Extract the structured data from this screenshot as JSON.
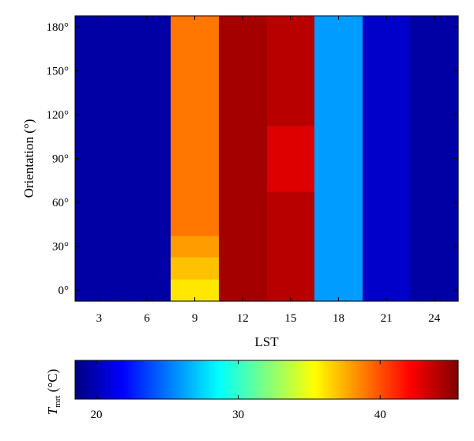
{
  "chart_data": [
    {
      "type": "heatmap",
      "title": "",
      "xlabel": "LST",
      "ylabel": "Orientation (°)",
      "xticks": [
        3,
        6,
        9,
        12,
        15,
        18,
        21,
        24
      ],
      "xtick_labels": [
        "3",
        "6",
        "9",
        "12",
        "15",
        "18",
        "21",
        "24"
      ],
      "xlim": [
        1.5,
        25.5
      ],
      "yticks": [
        0,
        30,
        60,
        90,
        120,
        150,
        180
      ],
      "ytick_labels": [
        "0°",
        "30°",
        "60°",
        "90°",
        "120°",
        "150°",
        "180°"
      ],
      "ylim": [
        -7.5,
        187.5
      ],
      "x_bin_width": 3,
      "y_bin_width": 15,
      "columns": [
        {
          "lst": 3,
          "tmrt": [
            [
              -7.5,
              187.5,
              19.5
            ]
          ]
        },
        {
          "lst": 6,
          "tmrt": [
            [
              -7.5,
              187.5,
              19.5
            ]
          ]
        },
        {
          "lst": 9,
          "tmrt": [
            [
              -7.5,
              7.5,
              36.0
            ],
            [
              7.5,
              22.5,
              37.0
            ],
            [
              22.5,
              37.5,
              38.0
            ],
            [
              37.5,
              187.5,
              39.0
            ]
          ]
        },
        {
          "lst": 12,
          "tmrt": [
            [
              -7.5,
              187.5,
              44.5
            ]
          ]
        },
        {
          "lst": 15,
          "tmrt": [
            [
              -7.5,
              67.5,
              44.0
            ],
            [
              67.5,
              112.5,
              43.0
            ],
            [
              112.5,
              187.5,
              44.0
            ]
          ]
        },
        {
          "lst": 18,
          "tmrt": [
            [
              -7.5,
              187.5,
              26.0
            ]
          ]
        },
        {
          "lst": 21,
          "tmrt": [
            [
              -7.5,
              187.5,
              20.5
            ]
          ]
        },
        {
          "lst": 24,
          "tmrt": [
            [
              -7.5,
              187.5,
              19.5
            ]
          ]
        }
      ],
      "grid": false,
      "colormap": "jet"
    },
    {
      "type": "colorbar",
      "label": "Tmrt (°C)",
      "label_main": "T",
      "label_sub": "mrt",
      "label_unit": " (°C)",
      "range": [
        18.5,
        45.5
      ],
      "ticks": [
        20,
        30,
        40
      ],
      "tick_labels": [
        "20",
        "30",
        "40"
      ]
    }
  ]
}
